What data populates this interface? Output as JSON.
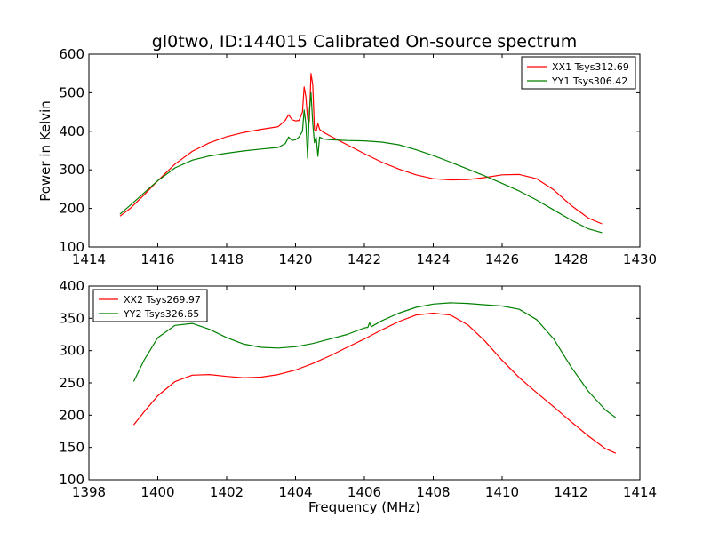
{
  "figure_title": "gl0two, ID:144015 Calibrated On-source spectrum",
  "ylabel": "Power in Kelvin",
  "xlabel": "Frequency (MHz)",
  "chart_data": [
    {
      "type": "line",
      "title": "gl0two, ID:144015 Calibrated On-source spectrum",
      "xlabel": "",
      "ylabel": "Power in Kelvin",
      "xlim": [
        1414,
        1430
      ],
      "ylim": [
        100,
        600
      ],
      "xticks": [
        1414,
        1416,
        1418,
        1420,
        1422,
        1424,
        1426,
        1428,
        1430
      ],
      "yticks": [
        100,
        200,
        300,
        400,
        500,
        600
      ],
      "legend": "top-right",
      "series": [
        {
          "name": "XX1 Tsys312.69",
          "color": "#ff0000",
          "x": [
            1414.9,
            1415.2,
            1415.6,
            1416.0,
            1416.5,
            1417.0,
            1417.5,
            1418.0,
            1418.5,
            1419.0,
            1419.5,
            1419.7,
            1419.8,
            1419.9,
            1420.0,
            1420.1,
            1420.2,
            1420.25,
            1420.3,
            1420.35,
            1420.4,
            1420.45,
            1420.5,
            1420.55,
            1420.6,
            1420.65,
            1420.7,
            1420.8,
            1421.0,
            1421.5,
            1422.0,
            1422.5,
            1423.0,
            1423.5,
            1424.0,
            1424.5,
            1425.0,
            1425.5,
            1426.0,
            1426.5,
            1427.0,
            1427.5,
            1428.0,
            1428.5,
            1428.9
          ],
          "values": [
            180,
            200,
            235,
            272,
            315,
            348,
            370,
            386,
            397,
            405,
            412,
            428,
            443,
            430,
            427,
            428,
            450,
            515,
            490,
            432,
            425,
            550,
            520,
            405,
            400,
            420,
            405,
            398,
            388,
            365,
            342,
            320,
            302,
            287,
            277,
            274,
            275,
            280,
            287,
            288,
            277,
            248,
            208,
            175,
            160
          ]
        },
        {
          "name": "YY1 Tsys306.42",
          "color": "#008000",
          "x": [
            1414.9,
            1415.2,
            1415.6,
            1416.0,
            1416.5,
            1417.0,
            1417.5,
            1418.0,
            1418.5,
            1419.0,
            1419.5,
            1419.7,
            1419.8,
            1419.9,
            1420.0,
            1420.1,
            1420.2,
            1420.25,
            1420.3,
            1420.35,
            1420.4,
            1420.45,
            1420.5,
            1420.55,
            1420.6,
            1420.65,
            1420.7,
            1420.8,
            1421.0,
            1421.5,
            1422.0,
            1422.5,
            1423.0,
            1423.5,
            1424.0,
            1424.5,
            1425.0,
            1425.5,
            1426.0,
            1426.5,
            1427.0,
            1427.5,
            1428.0,
            1428.5,
            1428.9
          ],
          "values": [
            185,
            208,
            240,
            272,
            305,
            325,
            336,
            343,
            349,
            354,
            358,
            368,
            385,
            376,
            378,
            385,
            400,
            455,
            420,
            330,
            450,
            500,
            420,
            370,
            385,
            335,
            385,
            380,
            378,
            376,
            375,
            372,
            365,
            352,
            337,
            320,
            302,
            284,
            265,
            245,
            222,
            196,
            170,
            147,
            137
          ]
        }
      ]
    },
    {
      "type": "line",
      "title": "",
      "xlabel": "Frequency (MHz)",
      "ylabel": "",
      "xlim": [
        1398,
        1414
      ],
      "ylim": [
        100,
        400
      ],
      "xticks": [
        1398,
        1400,
        1402,
        1404,
        1406,
        1408,
        1410,
        1412,
        1414
      ],
      "yticks": [
        100,
        150,
        200,
        250,
        300,
        350,
        400
      ],
      "legend": "top-left",
      "series": [
        {
          "name": "XX2 Tsys269.97",
          "color": "#ff0000",
          "x": [
            1399.3,
            1399.6,
            1400.0,
            1400.5,
            1401.0,
            1401.5,
            1402.0,
            1402.5,
            1403.0,
            1403.5,
            1404.0,
            1404.5,
            1405.0,
            1405.5,
            1406.0,
            1406.5,
            1407.0,
            1407.5,
            1408.0,
            1408.5,
            1409.0,
            1409.5,
            1410.0,
            1410.5,
            1411.0,
            1411.5,
            1412.0,
            1412.5,
            1413.0,
            1413.3
          ],
          "values": [
            185,
            205,
            230,
            252,
            262,
            263,
            260,
            258,
            259,
            263,
            270,
            280,
            292,
            305,
            318,
            332,
            345,
            355,
            358,
            355,
            340,
            315,
            285,
            258,
            235,
            213,
            190,
            168,
            148,
            141
          ]
        },
        {
          "name": "YY2 Tsys326.65",
          "color": "#008000",
          "x": [
            1399.3,
            1399.6,
            1400.0,
            1400.5,
            1401.0,
            1401.5,
            1402.0,
            1402.5,
            1403.0,
            1403.5,
            1404.0,
            1404.5,
            1405.0,
            1405.5,
            1406.0,
            1406.1,
            1406.15,
            1406.2,
            1406.5,
            1407.0,
            1407.5,
            1408.0,
            1408.5,
            1409.0,
            1409.5,
            1410.0,
            1410.5,
            1411.0,
            1411.5,
            1412.0,
            1412.5,
            1413.0,
            1413.3
          ],
          "values": [
            252,
            285,
            320,
            339,
            342,
            333,
            320,
            310,
            305,
            304,
            306,
            311,
            318,
            325,
            335,
            336,
            343,
            337,
            346,
            358,
            367,
            372,
            374,
            373,
            371,
            369,
            364,
            348,
            318,
            275,
            237,
            208,
            196
          ]
        }
      ]
    }
  ]
}
